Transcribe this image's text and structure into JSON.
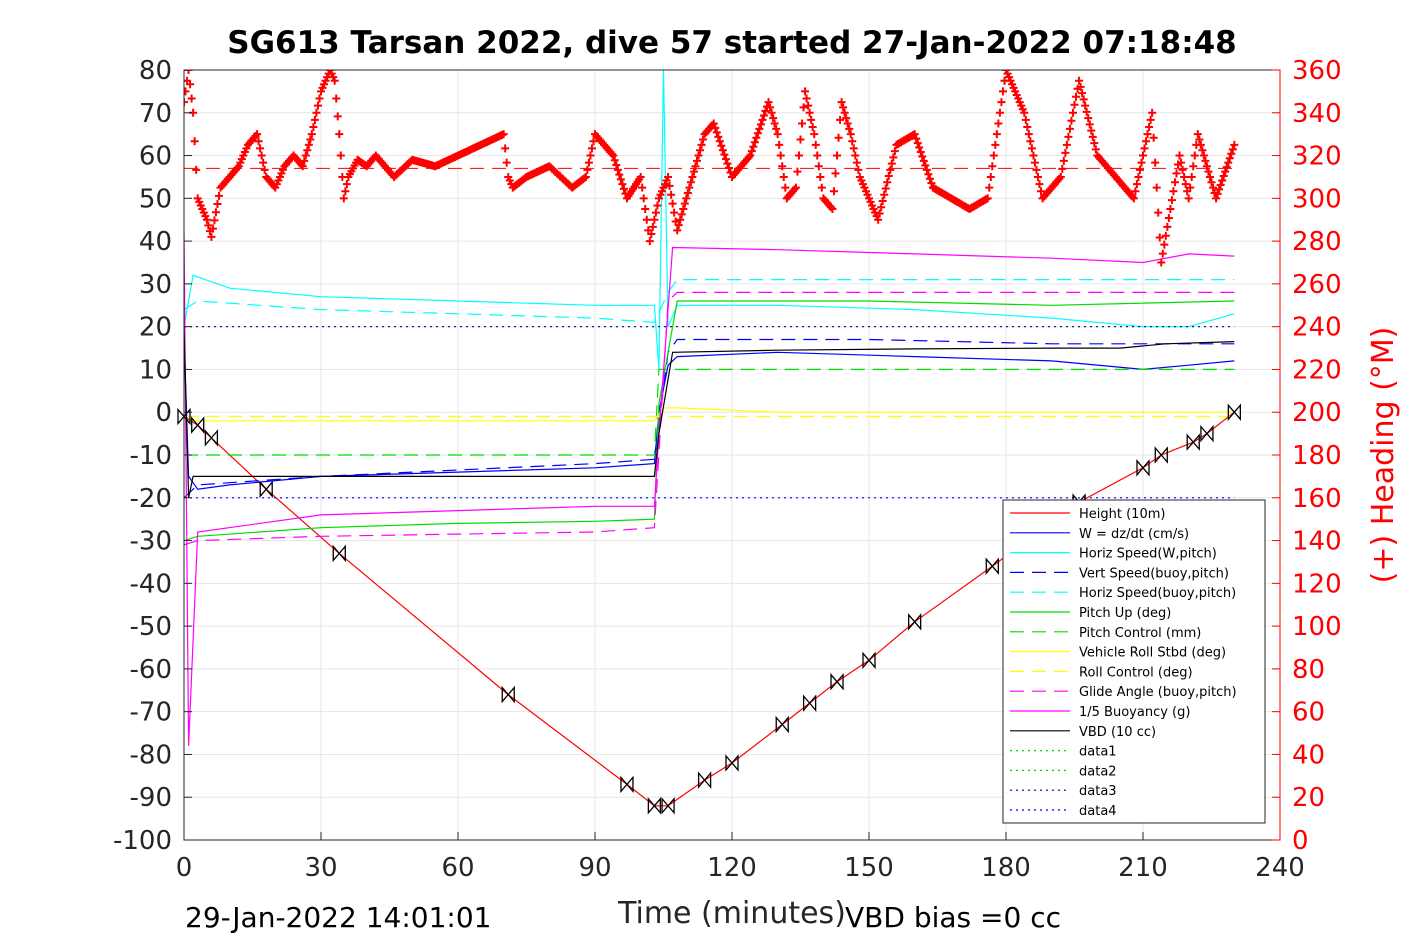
{
  "chart_data": {
    "type": "line",
    "title": "SG613 Tarsan 2022, dive 57 started 27-Jan-2022 07:18:48",
    "xlabel": "Time (minutes)",
    "ylabel_right": "(+) Heading (°M)",
    "xlim": [
      0,
      240
    ],
    "ylim": [
      -100,
      80
    ],
    "ylim_right": [
      0,
      360
    ],
    "x_ticks": [
      "0",
      "30",
      "60",
      "90",
      "120",
      "150",
      "180",
      "210",
      "240"
    ],
    "y_ticks": [
      "80",
      "70",
      "60",
      "50",
      "40",
      "30",
      "20",
      "10",
      "0",
      "-10",
      "-20",
      "-30",
      "-40",
      "-50",
      "-60",
      "-70",
      "-80",
      "-90",
      "-100"
    ],
    "y_ticks_right": [
      "360",
      "340",
      "320",
      "300",
      "280",
      "260",
      "240",
      "220",
      "200",
      "180",
      "160",
      "140",
      "120",
      "100",
      "80",
      "60",
      "40",
      "20",
      "0"
    ],
    "grid": true,
    "legend_position": "bottom-right",
    "footer_left": "29-Jan-2022 14:01:01",
    "footer_right": "VBD bias =0 cc",
    "heading_mean": 314,
    "series": [
      {
        "name": "Height (10m)",
        "color": "#ff0000",
        "style": "solid",
        "x": [
          0,
          3,
          6,
          18,
          34,
          71,
          97,
          103,
          106,
          114,
          120,
          131,
          137,
          143,
          150,
          160,
          177,
          196,
          210,
          214,
          221,
          224,
          230
        ],
        "y": [
          -1,
          -3,
          -6,
          -18,
          -33,
          -66,
          -87,
          -92,
          -92,
          -86,
          -82,
          -73,
          -68,
          -63,
          -58,
          -49,
          -36,
          -21,
          -13,
          -10,
          -7,
          -5,
          0
        ]
      },
      {
        "name": "W = dz/dt (cm/s)",
        "color": "#0000ff",
        "style": "solid",
        "x": [
          0,
          1,
          3,
          10,
          30,
          60,
          90,
          103,
          104,
          106,
          108,
          130,
          160,
          190,
          210,
          220,
          230
        ],
        "y": [
          18,
          -15,
          -18,
          -17,
          -15,
          -14,
          -13,
          -12,
          0,
          11,
          13,
          14,
          13,
          12,
          10,
          11,
          12
        ]
      },
      {
        "name": "Horiz Speed(W,pitch)",
        "color": "#00ffff",
        "style": "solid",
        "x": [
          0,
          2,
          10,
          30,
          60,
          90,
          103,
          104,
          105,
          106,
          108,
          130,
          160,
          190,
          210,
          220,
          230
        ],
        "y": [
          20,
          32,
          29,
          27,
          26,
          25,
          25,
          10,
          80,
          20,
          25,
          25,
          24,
          22,
          20,
          20,
          23
        ]
      },
      {
        "name": "Vert Speed(buoy,pitch)",
        "color": "#0000ff",
        "style": "dashed",
        "x": [
          0,
          3,
          30,
          60,
          90,
          103,
          106,
          108,
          150,
          190,
          230
        ],
        "y": [
          -20,
          -17,
          -15,
          -13.5,
          -12,
          -11,
          14,
          17,
          17,
          16,
          16
        ]
      },
      {
        "name": "Horiz Speed(buoy,pitch)",
        "color": "#00ffff",
        "style": "dashed",
        "x": [
          0,
          3,
          30,
          60,
          90,
          103,
          106,
          108,
          150,
          190,
          230
        ],
        "y": [
          24,
          26,
          24,
          23,
          22,
          21,
          28,
          31,
          31,
          31,
          31
        ]
      },
      {
        "name": "Pitch Up (deg)",
        "color": "#00dd00",
        "style": "solid",
        "x": [
          0,
          3,
          30,
          60,
          90,
          103,
          104,
          108,
          150,
          190,
          230
        ],
        "y": [
          -30,
          -29,
          -27,
          -26,
          -25.5,
          -25,
          2,
          26,
          26,
          25,
          26
        ]
      },
      {
        "name": "Pitch Control (mm)",
        "color": "#00dd00",
        "style": "dashed",
        "x": [
          0,
          103,
          104,
          230
        ],
        "y": [
          -10,
          -10,
          10,
          10
        ]
      },
      {
        "name": "Vehicle Roll Stbd (deg)",
        "color": "#ffff00",
        "style": "solid",
        "x": [
          0,
          10,
          30,
          60,
          90,
          103,
          105,
          108,
          130,
          160,
          190,
          210,
          230
        ],
        "y": [
          -2,
          -2,
          -2,
          -2,
          -2,
          -2,
          1,
          1,
          0,
          0,
          0,
          0,
          0
        ]
      },
      {
        "name": "Roll Control (deg)",
        "color": "#ffff00",
        "style": "dashed",
        "x": [
          0,
          230
        ],
        "y": [
          -1,
          -1
        ]
      },
      {
        "name": "Glide Angle (buoy,pitch)",
        "color": "#ff00ff",
        "style": "dashed",
        "x": [
          0,
          3,
          30,
          60,
          90,
          103,
          106,
          108,
          150,
          190,
          230
        ],
        "y": [
          -31,
          -30,
          -29,
          -28.5,
          -28,
          -27,
          26,
          28,
          28,
          28,
          28
        ]
      },
      {
        "name": "1/5 Buoyancy (g)",
        "color": "#ff00ff",
        "style": "solid",
        "x": [
          0,
          1,
          3,
          30,
          60,
          90,
          103,
          104,
          107,
          130,
          160,
          190,
          210,
          220,
          230
        ],
        "y": [
          42,
          -78,
          -28,
          -24,
          -23,
          -22,
          -22,
          -5,
          38.5,
          38,
          37,
          36,
          35,
          37,
          36.5
        ]
      },
      {
        "name": "VBD (10 cc)",
        "color": "#000000",
        "style": "solid",
        "x": [
          0,
          1,
          2,
          5,
          30,
          60,
          90,
          103,
          104,
          107,
          130,
          160,
          190,
          205,
          215,
          230
        ],
        "y": [
          20,
          -20,
          -15,
          -15,
          -15,
          -15,
          -15,
          -15,
          -5,
          14,
          14.5,
          14.8,
          15,
          15,
          16,
          16.5
        ]
      },
      {
        "name": "data1",
        "color": "#00dd00",
        "style": "dotted",
        "x": [],
        "y": []
      },
      {
        "name": "data2",
        "color": "#00dd00",
        "style": "dotted",
        "x": [],
        "y": []
      },
      {
        "name": "data3",
        "color": "#000080",
        "style": "dotted",
        "x": [
          0,
          230
        ],
        "y": [
          20,
          20
        ]
      },
      {
        "name": "data4",
        "color": "#0000ff",
        "style": "dotted",
        "x": [
          0,
          230
        ],
        "y": [
          -20,
          -20
        ]
      }
    ],
    "heading": {
      "axis": "right",
      "color": "#ff0000",
      "marker": "+",
      "x": [
        0,
        1,
        2,
        3,
        5,
        6,
        8,
        10,
        12,
        14,
        16,
        18,
        20,
        22,
        24,
        26,
        28,
        30,
        32,
        33,
        34,
        35,
        36,
        38,
        40,
        42,
        44,
        46,
        50,
        55,
        60,
        65,
        70,
        71,
        72,
        75,
        80,
        85,
        88,
        90,
        94,
        97,
        100,
        102,
        104,
        106,
        108,
        110,
        112,
        114,
        116,
        120,
        124,
        128,
        130,
        132,
        134,
        136,
        138,
        140,
        142,
        144,
        146,
        148,
        150,
        152,
        156,
        160,
        164,
        168,
        172,
        176,
        180,
        184,
        188,
        192,
        196,
        200,
        204,
        208,
        212,
        214,
        218,
        220,
        222,
        226,
        230
      ],
      "y": [
        345,
        360,
        340,
        300,
        290,
        282,
        305,
        310,
        315,
        325,
        330,
        310,
        305,
        315,
        320,
        315,
        330,
        350,
        360,
        355,
        330,
        300,
        310,
        318,
        315,
        320,
        315,
        310,
        318,
        315,
        320,
        325,
        330,
        310,
        305,
        310,
        315,
        305,
        310,
        330,
        320,
        300,
        310,
        280,
        300,
        310,
        285,
        300,
        315,
        330,
        335,
        310,
        320,
        345,
        330,
        300,
        305,
        350,
        330,
        300,
        295,
        345,
        330,
        310,
        300,
        290,
        325,
        330,
        305,
        300,
        295,
        300,
        360,
        340,
        300,
        310,
        355,
        320,
        310,
        300,
        340,
        270,
        320,
        300,
        330,
        300,
        325
      ]
    }
  }
}
